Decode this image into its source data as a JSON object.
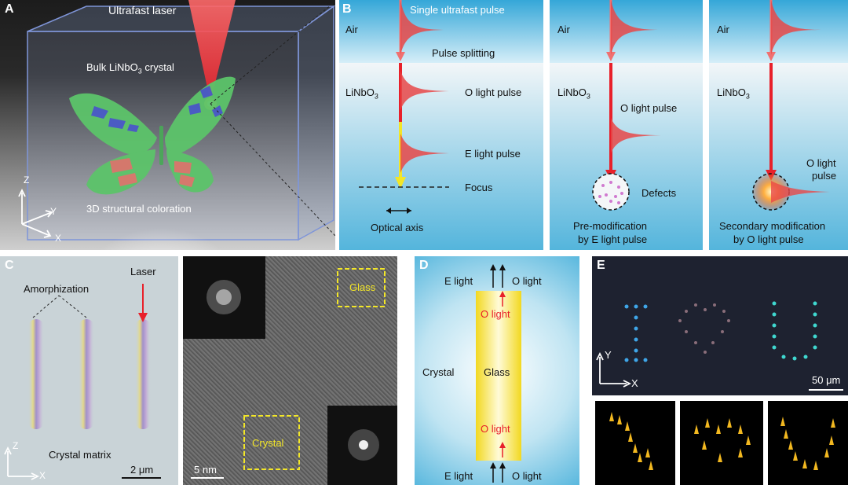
{
  "panel_a": {
    "letter": "A",
    "laser_label": "Ultrafast laser",
    "crystal_label": "Bulk LiNbO",
    "crystal_sub": "3",
    "crystal_suffix": " crystal",
    "coloration_label": "3D structural coloration",
    "axis_z": "Z",
    "axis_y": "Y",
    "axis_x": "X",
    "colors": {
      "wing": "#5cc46a",
      "spot_blue": "#4a5cc8",
      "spot_red": "#d9786b",
      "laser": "#e8202a"
    }
  },
  "panel_b": {
    "letter": "B",
    "col1": {
      "title": "Single ultrafast pulse",
      "air": "Air",
      "splitting": "Pulse splitting",
      "medium": "LiNbO",
      "medium_sub": "3",
      "o_pulse": "O light pulse",
      "e_pulse": "E light pulse",
      "focus": "Focus",
      "optical_axis": "Optical axis"
    },
    "col2": {
      "air": "Air",
      "medium": "LiNbO",
      "medium_sub": "3",
      "o_pulse": "O light pulse",
      "defects": "Defects",
      "caption_line1": "Pre-modification",
      "caption_line2": "by E light pulse"
    },
    "col3": {
      "air": "Air",
      "medium": "LiNbO",
      "medium_sub": "3",
      "o_pulse_line1": "O light",
      "o_pulse_line2": "pulse",
      "caption_line1": "Secondary modification",
      "caption_line2": "by O light pulse"
    }
  },
  "panel_c": {
    "letter": "C",
    "amorphization": "Amorphization",
    "laser": "Laser",
    "matrix": "Crystal matrix",
    "scale_left": "2 μm",
    "axis_z": "Z",
    "axis_x": "X",
    "glass": "Glass",
    "crystal": "Crystal",
    "scale_right": "5 nm"
  },
  "panel_d": {
    "letter": "D",
    "top_e": "E light",
    "top_o": "O light",
    "o_upper": "O light",
    "crystal": "Crystal",
    "glass": "Glass",
    "o_lower": "O light",
    "bottom_e": "E light",
    "bottom_o": "O light"
  },
  "panel_e": {
    "letter": "E",
    "axis_y": "Y",
    "axis_x": "X",
    "scale": "50 μm"
  }
}
